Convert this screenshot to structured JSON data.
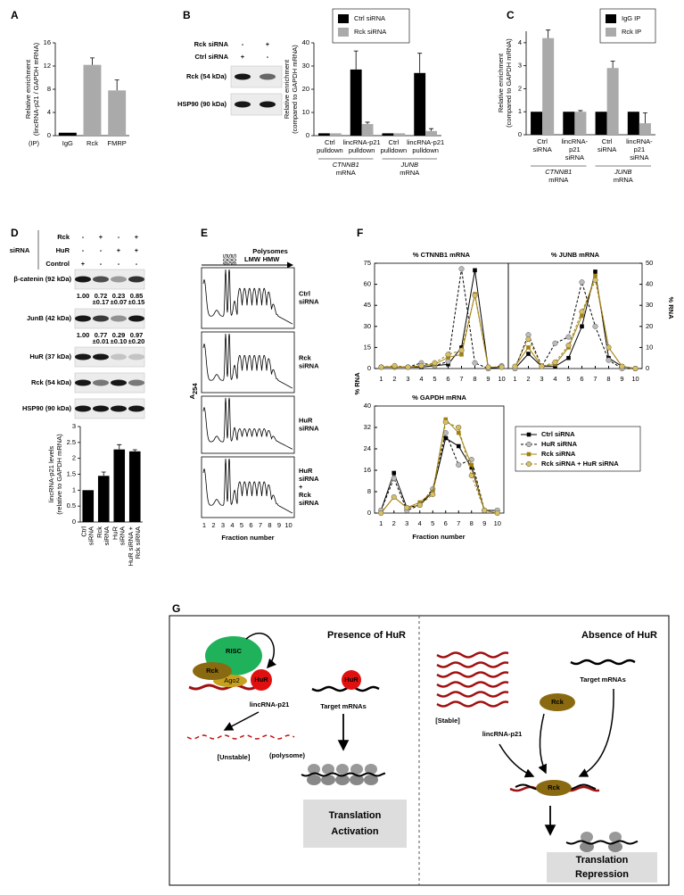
{
  "panels": {
    "A": {
      "label": "A",
      "chart": {
        "ylabel": [
          "Relative enrichment",
          "(lincRNA-p21 / GAPDH mRNA)"
        ],
        "prefix": "(IP)",
        "categories": [
          "IgG",
          "Rck",
          "FMRP"
        ],
        "values": [
          0.5,
          12.2,
          7.8
        ],
        "errors": [
          null,
          1.2,
          1.8
        ],
        "colors": [
          "#000000",
          "#aaaaaa",
          "#aaaaaa"
        ],
        "ylim": [
          0,
          16
        ],
        "yticks": [
          0,
          4,
          8,
          12,
          16
        ]
      }
    },
    "B": {
      "label": "B",
      "blot": {
        "conditions": [
          {
            "name": "Rck siRNA",
            "signs": [
              "-",
              "+"
            ]
          },
          {
            "name": "Ctrl siRNA",
            "signs": [
              "+",
              "-"
            ]
          }
        ],
        "rows": [
          "Rck (54 kDa)",
          "HSP90 (90 kDa)"
        ]
      },
      "chart": {
        "ylabel": [
          "Relative enrichment",
          "(compared to GAPDH mRNA)"
        ],
        "categories": [
          [
            "Ctrl",
            "pulldown"
          ],
          [
            "lincRNA-p21",
            "pulldown"
          ],
          [
            "Ctrl",
            "pulldown"
          ],
          [
            "lincRNA-p21",
            "pulldown"
          ]
        ],
        "groups": [
          [
            "CTNNB1",
            "mRNA"
          ],
          [
            "JUNB",
            "mRNA"
          ]
        ],
        "series": [
          {
            "name": "Ctrl siRNA",
            "color": "#000000",
            "values": [
              1,
              28.5,
              1,
              27
            ],
            "errors": [
              null,
              8,
              null,
              8.5
            ]
          },
          {
            "name": "Rck siRNA",
            "color": "#aaaaaa",
            "values": [
              1,
              5,
              1,
              2
            ],
            "errors": [
              null,
              0.8,
              null,
              1
            ]
          }
        ],
        "ylim": [
          0,
          40
        ],
        "yticks": [
          0,
          10,
          20,
          30,
          40
        ]
      }
    },
    "C": {
      "label": "C",
      "chart": {
        "ylabel": [
          "Relative enrichment",
          "(compared to GAPDH mRNA)"
        ],
        "categories": [
          [
            "Ctrl",
            "siRNA"
          ],
          [
            "lincRNA-",
            "p21",
            "siRNA"
          ],
          [
            "Ctrl",
            "siRNA"
          ],
          [
            "lincRNA-",
            "p21",
            "siRNA"
          ]
        ],
        "groups": [
          [
            "CTNNB1",
            "mRNA"
          ],
          [
            "JUNB",
            "mRNA"
          ]
        ],
        "series": [
          {
            "name": "IgG IP",
            "color": "#000000",
            "values": [
              1,
              1,
              1,
              1
            ],
            "errors": [
              null,
              null,
              null,
              null
            ]
          },
          {
            "name": "Rck IP",
            "color": "#aaaaaa",
            "values": [
              4.2,
              1,
              2.9,
              0.5
            ],
            "errors": [
              0.35,
              0.05,
              0.3,
              0.45
            ]
          }
        ],
        "ylim": [
          0,
          4.5
        ],
        "yticks": [
          0,
          1,
          2,
          3,
          4
        ]
      }
    },
    "D": {
      "label": "D",
      "siRNA": "siRNA",
      "conditions": [
        {
          "name": "Rck",
          "signs": [
            "-",
            "+",
            "-",
            "+"
          ]
        },
        {
          "name": "HuR",
          "signs": [
            "-",
            "-",
            "+",
            "+"
          ]
        },
        {
          "name": "Control",
          "signs": [
            "+",
            "-",
            "-",
            "-"
          ]
        }
      ],
      "rows": [
        "β-catenin (92 kDa)",
        "JunB (42 kDa)",
        "HuR (37 kDa)",
        "Rck (54 kDa)",
        "HSP90 (90 kDa)"
      ],
      "quant": [
        [
          [
            "1.00"
          ],
          [
            "0.72",
            "±0.17"
          ],
          [
            "0.23",
            "±0.07"
          ],
          [
            "0.85",
            "±0.15"
          ]
        ],
        [
          [
            "1.00"
          ],
          [
            "0.77",
            "±0.01"
          ],
          [
            "0.29",
            "±0.10"
          ],
          [
            "0.97",
            "±0.20"
          ]
        ]
      ],
      "chart": {
        "ylabel": [
          "lincRNA-p21 levels",
          "(relative to GAPDH mRNA)"
        ],
        "categories": [
          [
            "Ctrl",
            "siRNA"
          ],
          [
            "Rck",
            "siRNA"
          ],
          [
            "HuR",
            "siRNA"
          ],
          [
            "HuR siRNA +",
            "Rck siRNA"
          ]
        ],
        "values": [
          1,
          1.45,
          2.28,
          2.22
        ],
        "errors": [
          null,
          0.12,
          0.15,
          0.05
        ],
        "colors": [
          "#000000",
          "#000000",
          "#000000",
          "#000000"
        ],
        "ylim": [
          0,
          3
        ],
        "yticks": [
          0,
          0.5,
          1,
          1.5,
          2,
          2.5,
          3
        ]
      }
    },
    "E": {
      "label": "E",
      "header": "Polysomes",
      "subunits": [
        "40S",
        "60S",
        "80S"
      ],
      "ranges": [
        "LMW",
        "HMW"
      ],
      "ylabel": [
        "A",
        "254"
      ],
      "profiles": [
        [
          "Ctrl",
          "siRNA"
        ],
        [
          "Rck",
          "siRNA"
        ],
        [
          "HuR",
          "siRNA"
        ],
        [
          "HuR",
          "siRNA",
          "+",
          "Rck",
          "siRNA"
        ]
      ],
      "xticks": [
        1,
        2,
        3,
        4,
        5,
        6,
        7,
        8,
        9,
        10
      ],
      "xlabel": "Fraction number"
    },
    "F": {
      "label": "F",
      "x": [
        1,
        2,
        3,
        4,
        5,
        6,
        7,
        8,
        9,
        10
      ],
      "xlim": [
        0.5,
        10.5
      ],
      "ylabel": "% RNA",
      "xlabel": "Fraction number",
      "series": [
        {
          "name": "Ctrl siRNA",
          "color": "#000000",
          "dashed": false,
          "marker": "square"
        },
        {
          "name": "HuR siRNA",
          "color": "#000000",
          "marker_color": "#bbbbbb",
          "dashed": true,
          "marker": "circle"
        },
        {
          "name": "Rck siRNA",
          "color": "#a08010",
          "dashed": false,
          "marker": "square"
        },
        {
          "name": "Rck siRNA + HuR siRNA",
          "color": "#a08010",
          "marker_color": "#d8c060",
          "dashed": true,
          "marker": "circle"
        }
      ],
      "charts": [
        {
          "title": "% CTNNB1 mRNA",
          "ylim": [
            0,
            75
          ],
          "yticks": [
            0,
            15,
            30,
            45,
            60,
            75
          ],
          "values": [
            [
              1,
              1,
              1,
              1,
              2,
              3,
              15,
              70,
              0,
              1
            ],
            [
              1,
              1,
              1,
              4,
              2,
              5,
              71,
              4,
              0,
              2
            ],
            [
              1,
              1,
              1,
              2,
              3,
              8,
              10,
              53,
              1,
              1
            ],
            [
              1,
              2,
              1,
              2,
              4,
              10,
              13,
              52,
              1,
              1
            ]
          ]
        },
        {
          "title": "% JUNB mRNA",
          "ylim": [
            0,
            50
          ],
          "yticks": [
            0,
            10,
            20,
            30,
            40,
            50
          ],
          "values": [
            [
              0,
              7,
              1,
              1,
              5,
              20,
              46,
              5,
              1,
              0
            ],
            [
              0,
              16,
              1,
              12,
              15,
              41,
              20,
              4,
              0,
              0
            ],
            [
              1,
              10,
              1,
              2,
              10,
              25,
              44,
              10,
              1,
              0
            ],
            [
              1,
              14,
              1,
              3,
              11,
              27,
              42,
              10,
              1,
              0
            ]
          ]
        },
        {
          "title": "% GAPDH mRNA",
          "ylim": [
            0,
            40
          ],
          "yticks": [
            0,
            8,
            16,
            24,
            32,
            40
          ],
          "values": [
            [
              1,
              15,
              2,
              3,
              8,
              28,
              25,
              17,
              1,
              1
            ],
            [
              1,
              13,
              1,
              3,
              9,
              30,
              18,
              20,
              1,
              1
            ],
            [
              0,
              6,
              2,
              4,
              8,
              35,
              30,
              18,
              1,
              0
            ],
            [
              0,
              6,
              2,
              3,
              7,
              34,
              32,
              14,
              1,
              0
            ]
          ]
        }
      ]
    },
    "G": {
      "label": "G",
      "left": {
        "title": "Presence of HuR",
        "risc": "RISC",
        "rck": "Rck",
        "ago2": "Ago2",
        "hur": "HuR",
        "linc": "lincRNA-p21",
        "unstable": "[Unstable]",
        "targets": "Target mRNAs",
        "hur2": "HuR",
        "polysome": "(polysome)",
        "outcome": [
          "Translation",
          "Activation"
        ]
      },
      "right": {
        "title": "Absence of HuR",
        "stable": "[Stable]",
        "linc": "lincRNA-p21",
        "targets": "Target mRNAs",
        "rck": "Rck",
        "rck2": "Rck",
        "outcome": [
          "Translation",
          "Repression"
        ]
      }
    }
  }
}
